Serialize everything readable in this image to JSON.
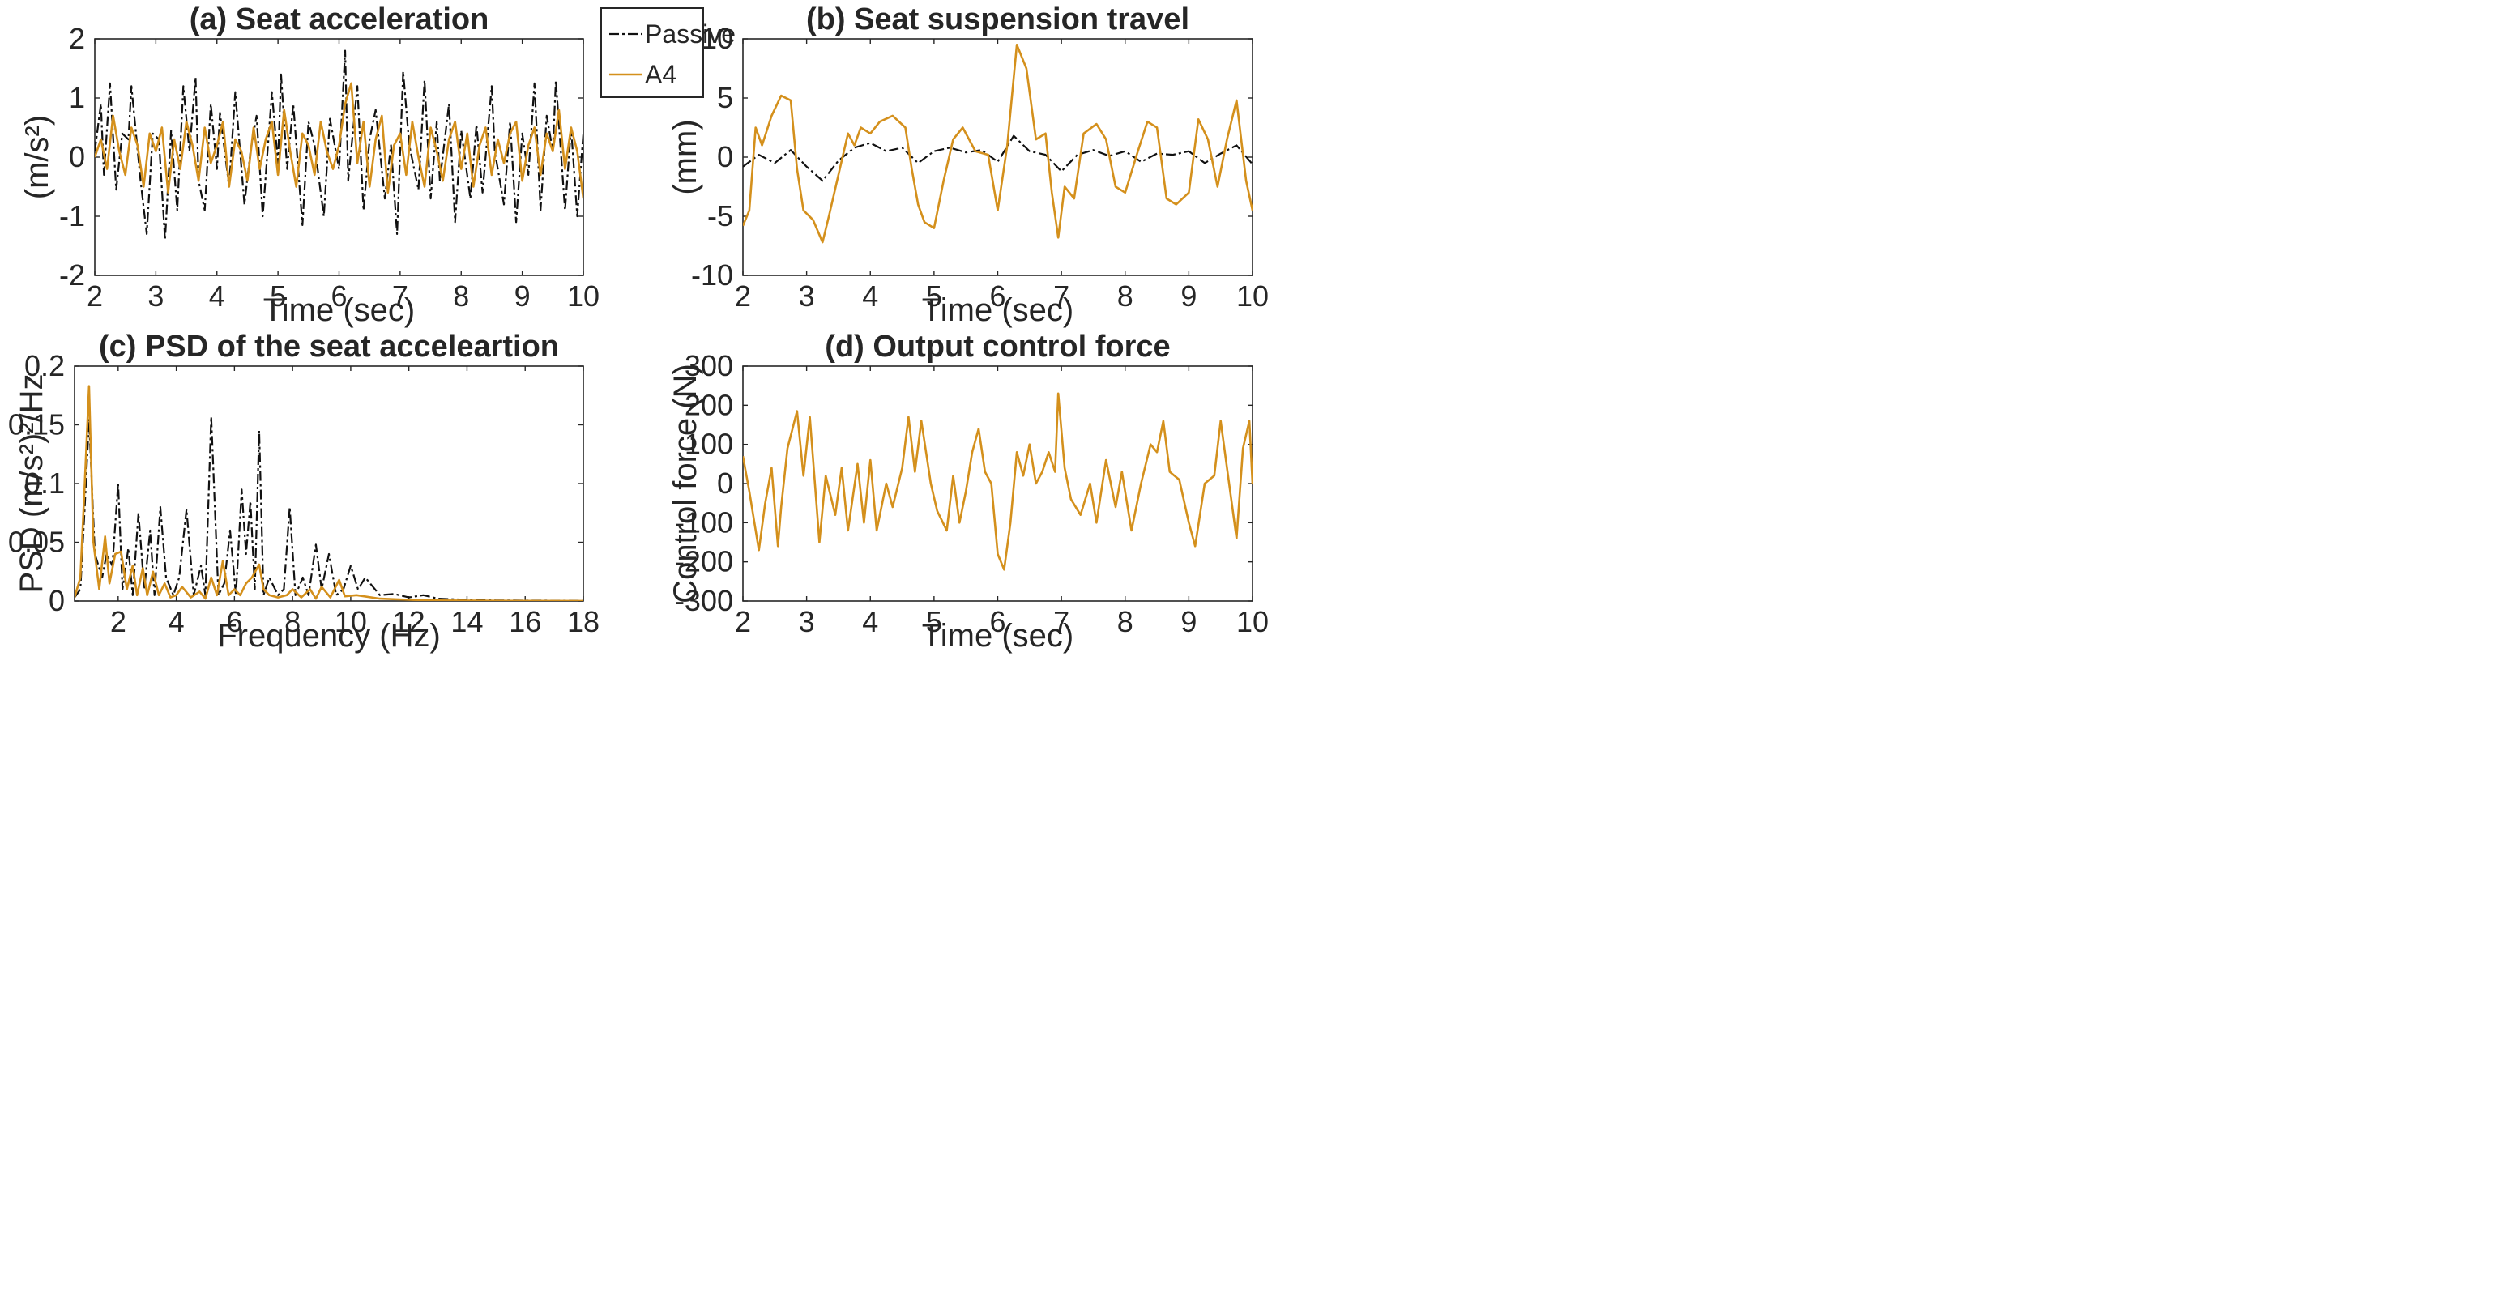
{
  "colors": {
    "passive": "#111111",
    "a4": "#d4901c",
    "axis": "#262626"
  },
  "legend": {
    "items": [
      {
        "label": "Passive",
        "style": "dashdot"
      },
      {
        "label": "A4",
        "style": "solid"
      }
    ]
  },
  "chart_data": [
    {
      "id": "a",
      "type": "line",
      "title": "(a) Seat acceleration",
      "xlabel": "Time (sec)",
      "ylabel": "(m/s²)",
      "xlim": [
        2,
        10
      ],
      "ylim": [
        -2,
        2
      ],
      "xticks": [
        2,
        3,
        4,
        5,
        6,
        7,
        8,
        9,
        10
      ],
      "yticks": [
        -2,
        -1,
        0,
        1,
        2
      ],
      "series": [
        {
          "name": "Passive",
          "x": [
            2.0,
            2.1,
            2.15,
            2.25,
            2.35,
            2.45,
            2.55,
            2.6,
            2.75,
            2.85,
            2.95,
            3.05,
            3.15,
            3.25,
            3.35,
            3.45,
            3.55,
            3.65,
            3.7,
            3.8,
            3.9,
            4.0,
            4.05,
            4.2,
            4.3,
            4.45,
            4.55,
            4.65,
            4.75,
            4.9,
            5.0,
            5.05,
            5.15,
            5.25,
            5.4,
            5.5,
            5.6,
            5.75,
            5.85,
            6.0,
            6.1,
            6.15,
            6.3,
            6.4,
            6.5,
            6.6,
            6.75,
            6.85,
            6.95,
            7.05,
            7.15,
            7.3,
            7.4,
            7.5,
            7.6,
            7.65,
            7.8,
            7.9,
            8.0,
            8.15,
            8.25,
            8.35,
            8.5,
            8.55,
            8.7,
            8.8,
            8.9,
            9.0,
            9.1,
            9.2,
            9.3,
            9.4,
            9.5,
            9.55,
            9.7,
            9.8,
            9.9,
            10.0
          ],
          "y": [
            0.1,
            0.9,
            -0.3,
            1.25,
            -0.55,
            0.4,
            0.3,
            1.2,
            -0.4,
            -1.3,
            0.4,
            0.3,
            -1.4,
            0.45,
            -0.9,
            1.2,
            0.1,
            1.35,
            -0.4,
            -0.9,
            0.9,
            -0.2,
            0.75,
            -0.5,
            1.1,
            -0.8,
            0.1,
            0.7,
            -1.0,
            1.1,
            -0.1,
            1.4,
            -0.2,
            0.9,
            -1.15,
            0.6,
            0.2,
            -1.0,
            0.65,
            -0.2,
            1.8,
            -0.4,
            1.2,
            -0.9,
            0.3,
            0.8,
            -0.7,
            0.2,
            -1.3,
            1.45,
            0.2,
            -0.55,
            1.3,
            -0.7,
            0.6,
            -0.4,
            0.9,
            -1.1,
            0.45,
            -0.7,
            0.55,
            -0.6,
            1.2,
            0.1,
            -0.8,
            0.6,
            -1.1,
            0.4,
            -0.3,
            1.25,
            -0.9,
            0.7,
            0.1,
            1.3,
            -0.9,
            0.5,
            -1.0,
            0.4
          ]
        },
        {
          "name": "A4",
          "x": [
            2.0,
            2.1,
            2.2,
            2.3,
            2.4,
            2.5,
            2.6,
            2.7,
            2.8,
            2.9,
            3.0,
            3.1,
            3.2,
            3.3,
            3.4,
            3.5,
            3.6,
            3.7,
            3.8,
            3.9,
            4.0,
            4.1,
            4.2,
            4.3,
            4.4,
            4.5,
            4.6,
            4.7,
            4.8,
            4.9,
            5.0,
            5.1,
            5.2,
            5.3,
            5.4,
            5.5,
            5.6,
            5.7,
            5.8,
            5.9,
            6.0,
            6.1,
            6.2,
            6.3,
            6.4,
            6.5,
            6.6,
            6.7,
            6.8,
            6.9,
            7.0,
            7.1,
            7.2,
            7.3,
            7.4,
            7.5,
            7.6,
            7.7,
            7.8,
            7.9,
            8.0,
            8.1,
            8.2,
            8.3,
            8.4,
            8.5,
            8.6,
            8.7,
            8.8,
            8.9,
            9.0,
            9.1,
            9.2,
            9.3,
            9.4,
            9.5,
            9.6,
            9.7,
            9.8,
            9.9,
            10.0
          ],
          "y": [
            0.0,
            0.3,
            -0.2,
            0.7,
            0.1,
            -0.3,
            0.5,
            0.2,
            -0.5,
            0.4,
            0.1,
            0.5,
            -0.6,
            0.3,
            -0.2,
            0.6,
            0.2,
            -0.4,
            0.5,
            -0.1,
            0.2,
            0.6,
            -0.5,
            0.3,
            0.1,
            -0.4,
            0.5,
            -0.2,
            0.3,
            0.6,
            -0.3,
            0.8,
            0.1,
            -0.5,
            0.4,
            0.2,
            -0.3,
            0.6,
            0.1,
            -0.2,
            0.2,
            0.9,
            1.25,
            -0.1,
            0.6,
            -0.5,
            0.3,
            0.7,
            -0.6,
            0.2,
            0.4,
            -0.3,
            0.6,
            0.0,
            -0.5,
            0.5,
            0.1,
            -0.4,
            0.3,
            0.6,
            -0.2,
            0.4,
            -0.5,
            0.2,
            0.5,
            -0.3,
            0.3,
            -0.1,
            0.4,
            0.6,
            -0.4,
            0.2,
            0.5,
            -0.3,
            0.4,
            0.1,
            0.8,
            -0.2,
            0.5,
            0.1,
            -0.7
          ]
        }
      ]
    },
    {
      "id": "b",
      "type": "line",
      "title": "(b) Seat suspension travel",
      "xlabel": "Time (sec)",
      "ylabel": "(mm)",
      "xlim": [
        2,
        10
      ],
      "ylim": [
        -10,
        10
      ],
      "xticks": [
        2,
        3,
        4,
        5,
        6,
        7,
        8,
        9,
        10
      ],
      "yticks": [
        -10,
        -5,
        0,
        5,
        10
      ],
      "series": [
        {
          "name": "Passive",
          "x": [
            2.0,
            2.25,
            2.5,
            2.75,
            3.0,
            3.25,
            3.5,
            3.75,
            4.0,
            4.25,
            4.5,
            4.75,
            5.0,
            5.25,
            5.5,
            5.75,
            6.0,
            6.25,
            6.5,
            6.75,
            7.0,
            7.25,
            7.5,
            7.75,
            8.0,
            8.25,
            8.5,
            8.75,
            9.0,
            9.25,
            9.5,
            9.75,
            10.0
          ],
          "y": [
            -0.8,
            0.2,
            -0.5,
            0.6,
            -0.8,
            -2.0,
            -0.3,
            0.8,
            1.2,
            0.5,
            0.8,
            -0.5,
            0.5,
            0.8,
            0.4,
            0.6,
            -0.4,
            1.8,
            0.5,
            0.2,
            -1.2,
            0.2,
            0.6,
            0.1,
            0.5,
            -0.4,
            0.3,
            0.2,
            0.5,
            -0.5,
            0.3,
            1.0,
            -0.6
          ]
        },
        {
          "name": "A4",
          "x": [
            2.0,
            2.1,
            2.2,
            2.3,
            2.45,
            2.6,
            2.75,
            2.85,
            2.95,
            3.1,
            3.25,
            3.35,
            3.5,
            3.65,
            3.75,
            3.85,
            4.0,
            4.15,
            4.35,
            4.55,
            4.65,
            4.75,
            4.85,
            5.0,
            5.15,
            5.3,
            5.45,
            5.65,
            5.85,
            6.0,
            6.15,
            6.3,
            6.45,
            6.6,
            6.75,
            6.85,
            6.95,
            7.05,
            7.2,
            7.35,
            7.55,
            7.7,
            7.85,
            8.0,
            8.2,
            8.35,
            8.5,
            8.65,
            8.8,
            9.0,
            9.15,
            9.3,
            9.45,
            9.6,
            9.75,
            9.9,
            10.0
          ],
          "y": [
            -5.8,
            -4.5,
            2.5,
            1.0,
            3.5,
            5.2,
            4.8,
            -1.0,
            -4.5,
            -5.3,
            -7.2,
            -5.0,
            -1.5,
            2.0,
            1.0,
            2.5,
            2.0,
            3.0,
            3.5,
            2.5,
            -1.0,
            -4.0,
            -5.5,
            -6.0,
            -2.0,
            1.5,
            2.5,
            0.5,
            0.2,
            -4.5,
            1.0,
            9.5,
            7.5,
            1.5,
            2.0,
            -3.0,
            -6.8,
            -2.5,
            -3.5,
            2.0,
            2.8,
            1.5,
            -2.5,
            -3.0,
            0.5,
            3.0,
            2.5,
            -3.5,
            -4.0,
            -3.0,
            3.2,
            1.5,
            -2.5,
            1.5,
            4.8,
            -2.0,
            -4.5
          ]
        }
      ]
    },
    {
      "id": "c",
      "type": "line",
      "title": "(c) PSD of the seat acceleartion",
      "xlabel": "Frequency (Hz)",
      "ylabel": "PSD (m/s²)²/Hz",
      "xlim": [
        0.5,
        18
      ],
      "ylim": [
        0,
        0.2
      ],
      "xticks": [
        2,
        4,
        6,
        8,
        10,
        12,
        14,
        16,
        18
      ],
      "yticks": [
        0,
        0.05,
        0.1,
        0.15,
        0.2
      ],
      "ytick_labels": [
        "0",
        "0.05",
        "0.1",
        "0.15",
        "0.2"
      ],
      "series": [
        {
          "name": "Passive",
          "x": [
            0.5,
            0.7,
            0.85,
            1.0,
            1.2,
            1.45,
            1.6,
            1.8,
            2.0,
            2.15,
            2.35,
            2.5,
            2.7,
            2.9,
            3.1,
            3.25,
            3.45,
            3.65,
            3.9,
            4.1,
            4.35,
            4.6,
            4.85,
            5.0,
            5.2,
            5.45,
            5.65,
            5.85,
            6.05,
            6.25,
            6.4,
            6.55,
            6.7,
            6.85,
            7.0,
            7.2,
            7.5,
            7.7,
            7.9,
            8.1,
            8.35,
            8.55,
            8.8,
            9.0,
            9.25,
            9.5,
            9.75,
            10.0,
            10.25,
            10.5,
            11.0,
            11.5,
            12.0,
            12.5,
            13.0,
            14.0,
            15.0,
            18.0
          ],
          "y": [
            0.003,
            0.01,
            0.08,
            0.155,
            0.04,
            0.02,
            0.04,
            0.03,
            0.1,
            0.01,
            0.045,
            0.005,
            0.075,
            0.01,
            0.06,
            0.005,
            0.08,
            0.02,
            0.005,
            0.02,
            0.078,
            0.005,
            0.03,
            0.005,
            0.157,
            0.005,
            0.015,
            0.06,
            0.005,
            0.095,
            0.04,
            0.085,
            0.01,
            0.145,
            0.005,
            0.02,
            0.005,
            0.01,
            0.08,
            0.005,
            0.02,
            0.005,
            0.048,
            0.01,
            0.04,
            0.005,
            0.01,
            0.03,
            0.01,
            0.02,
            0.005,
            0.006,
            0.003,
            0.005,
            0.002,
            0.001,
            0.0005,
            0.0002
          ]
        },
        {
          "name": "A4",
          "x": [
            0.5,
            0.7,
            0.85,
            1.0,
            1.15,
            1.35,
            1.55,
            1.7,
            1.9,
            2.1,
            2.3,
            2.5,
            2.65,
            2.85,
            3.0,
            3.2,
            3.4,
            3.6,
            3.8,
            4.0,
            4.2,
            4.5,
            4.8,
            5.0,
            5.2,
            5.4,
            5.6,
            5.8,
            6.0,
            6.2,
            6.4,
            6.6,
            6.85,
            7.0,
            7.2,
            7.5,
            7.8,
            8.0,
            8.3,
            8.6,
            8.8,
            9.0,
            9.3,
            9.6,
            9.8,
            10.2,
            11.0,
            12.0,
            13.0,
            15.0,
            18.0
          ],
          "y": [
            0.003,
            0.02,
            0.1,
            0.183,
            0.05,
            0.01,
            0.055,
            0.015,
            0.04,
            0.042,
            0.01,
            0.03,
            0.005,
            0.028,
            0.005,
            0.025,
            0.005,
            0.015,
            0.003,
            0.005,
            0.012,
            0.003,
            0.008,
            0.002,
            0.02,
            0.005,
            0.034,
            0.005,
            0.01,
            0.005,
            0.015,
            0.02,
            0.031,
            0.01,
            0.005,
            0.003,
            0.005,
            0.01,
            0.003,
            0.01,
            0.002,
            0.012,
            0.003,
            0.018,
            0.004,
            0.005,
            0.002,
            0.001,
            0.0005,
            0.0002,
            0.0001
          ]
        }
      ]
    },
    {
      "id": "d",
      "type": "line",
      "title": "(d) Output control force",
      "xlabel": "Time (sec)",
      "ylabel": "Control force (N)",
      "xlim": [
        2,
        10
      ],
      "ylim": [
        -300,
        300
      ],
      "xticks": [
        2,
        3,
        4,
        5,
        6,
        7,
        8,
        9,
        10
      ],
      "yticks": [
        -300,
        -200,
        -100,
        0,
        100,
        200,
        300
      ],
      "series": [
        {
          "name": "A4",
          "x": [
            2.0,
            2.1,
            2.25,
            2.35,
            2.45,
            2.55,
            2.6,
            2.7,
            2.85,
            2.95,
            3.05,
            3.2,
            3.3,
            3.45,
            3.55,
            3.65,
            3.8,
            3.9,
            4.0,
            4.1,
            4.25,
            4.35,
            4.5,
            4.6,
            4.7,
            4.8,
            4.95,
            5.05,
            5.2,
            5.3,
            5.4,
            5.5,
            5.6,
            5.7,
            5.8,
            5.9,
            6.0,
            6.1,
            6.2,
            6.3,
            6.4,
            6.5,
            6.6,
            6.7,
            6.8,
            6.9,
            6.95,
            7.05,
            7.15,
            7.3,
            7.45,
            7.55,
            7.7,
            7.85,
            7.95,
            8.1,
            8.25,
            8.4,
            8.5,
            8.6,
            8.7,
            8.85,
            9.0,
            9.1,
            9.25,
            9.4,
            9.5,
            9.6,
            9.75,
            9.85,
            9.95,
            10.0
          ],
          "y": [
            70,
            -20,
            -170,
            -50,
            40,
            -160,
            -60,
            90,
            185,
            20,
            170,
            -150,
            20,
            -80,
            40,
            -120,
            50,
            -100,
            60,
            -120,
            0,
            -60,
            40,
            170,
            30,
            160,
            0,
            -70,
            -120,
            20,
            -100,
            -20,
            80,
            140,
            30,
            0,
            -180,
            -220,
            -100,
            80,
            20,
            100,
            0,
            30,
            80,
            30,
            230,
            40,
            -40,
            -80,
            0,
            -100,
            60,
            -60,
            30,
            -120,
            0,
            100,
            80,
            160,
            30,
            10,
            -100,
            -160,
            0,
            20,
            160,
            40,
            -140,
            90,
            160,
            0
          ]
        }
      ]
    }
  ]
}
